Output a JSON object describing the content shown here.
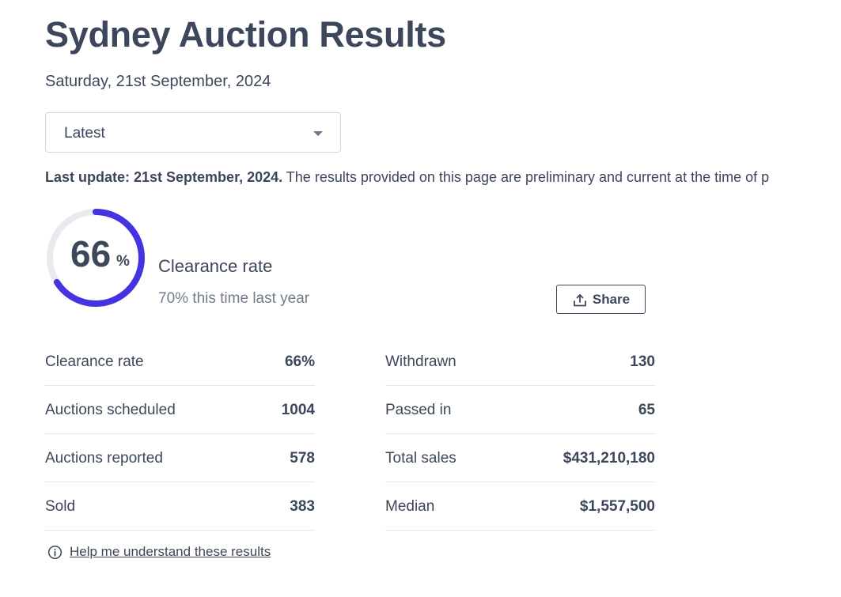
{
  "header": {
    "title": "Sydney Auction Results",
    "date": "Saturday, 21st September, 2024"
  },
  "filter": {
    "selected": "Latest",
    "icon": "chevron-down-icon"
  },
  "update": {
    "bold": "Last update: 21st September, 2024.",
    "text": " The results provided on this page are preliminary and current at the time of p"
  },
  "summary": {
    "rate_value": "66",
    "rate_unit": "%",
    "rate_fraction": 0.66,
    "label": "Clearance rate",
    "comparison": "70% this time last year",
    "ring_color": "#4433e0",
    "track_color": "#e8eaf0"
  },
  "share": {
    "label": "Share",
    "icon": "share-upload-icon"
  },
  "stats_left": [
    {
      "label": "Clearance rate",
      "value": "66%"
    },
    {
      "label": "Auctions scheduled",
      "value": "1004"
    },
    {
      "label": "Auctions reported",
      "value": "578"
    },
    {
      "label": "Sold",
      "value": "383"
    }
  ],
  "stats_right": [
    {
      "label": "Withdrawn",
      "value": "130"
    },
    {
      "label": "Passed in",
      "value": "65"
    },
    {
      "label": "Total sales",
      "value": "$431,210,180"
    },
    {
      "label": "Median",
      "value": "$1,557,500"
    }
  ],
  "help": {
    "label": "Help me understand these results",
    "icon": "info-icon"
  }
}
